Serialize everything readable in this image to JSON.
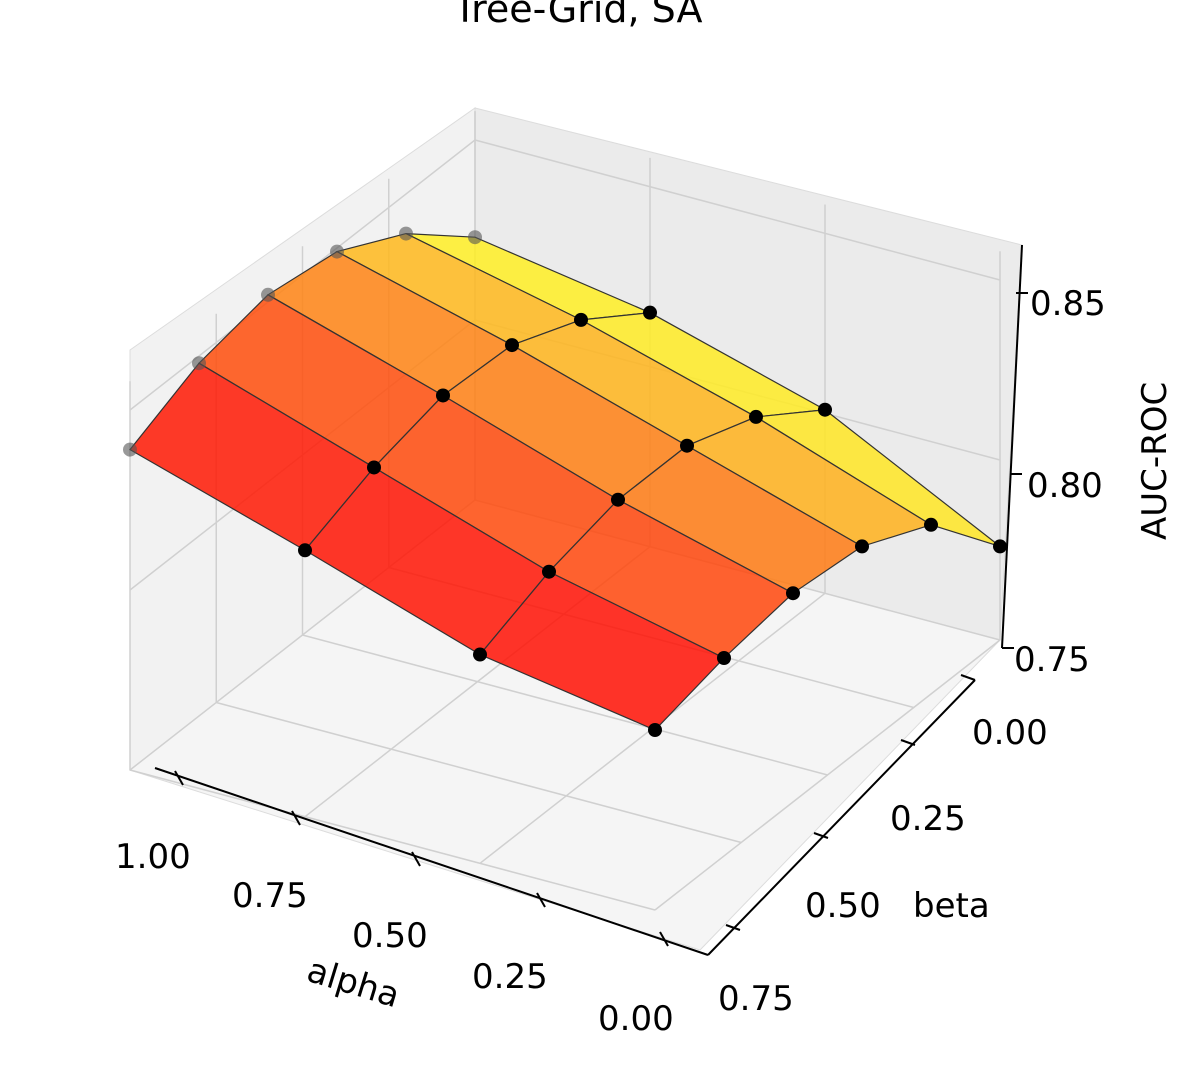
{
  "chart_data": {
    "type": "surface3d",
    "title": "Tree-Grid, SA",
    "xlabel": "alpha",
    "ylabel": "beta",
    "zlabel": "AUC-ROC",
    "x_ticks": [
      "1.00",
      "0.75",
      "0.50",
      "0.25",
      "0.00"
    ],
    "y_ticks": [
      "0.00",
      "0.25",
      "0.50",
      "0.75"
    ],
    "z_ticks": [
      "0.75",
      "0.80",
      "0.85"
    ],
    "alpha": [
      0.0,
      0.2,
      0.4,
      0.6,
      0.8,
      1.0
    ],
    "beta": [
      0.0,
      0.25,
      0.5,
      0.75
    ],
    "auc_roc_by_beta": [
      [
        0.823,
        0.839,
        0.849,
        0.852,
        0.848,
        0.839
      ],
      [
        0.815,
        0.828,
        0.836,
        0.837,
        0.832,
        0.824
      ],
      [
        0.801,
        0.814,
        0.821,
        0.821,
        0.816,
        0.808
      ],
      [
        0.776,
        0.797,
        0.806,
        0.808,
        0.805,
        0.8
      ]
    ],
    "colormap": "autumn",
    "grid": true
  }
}
